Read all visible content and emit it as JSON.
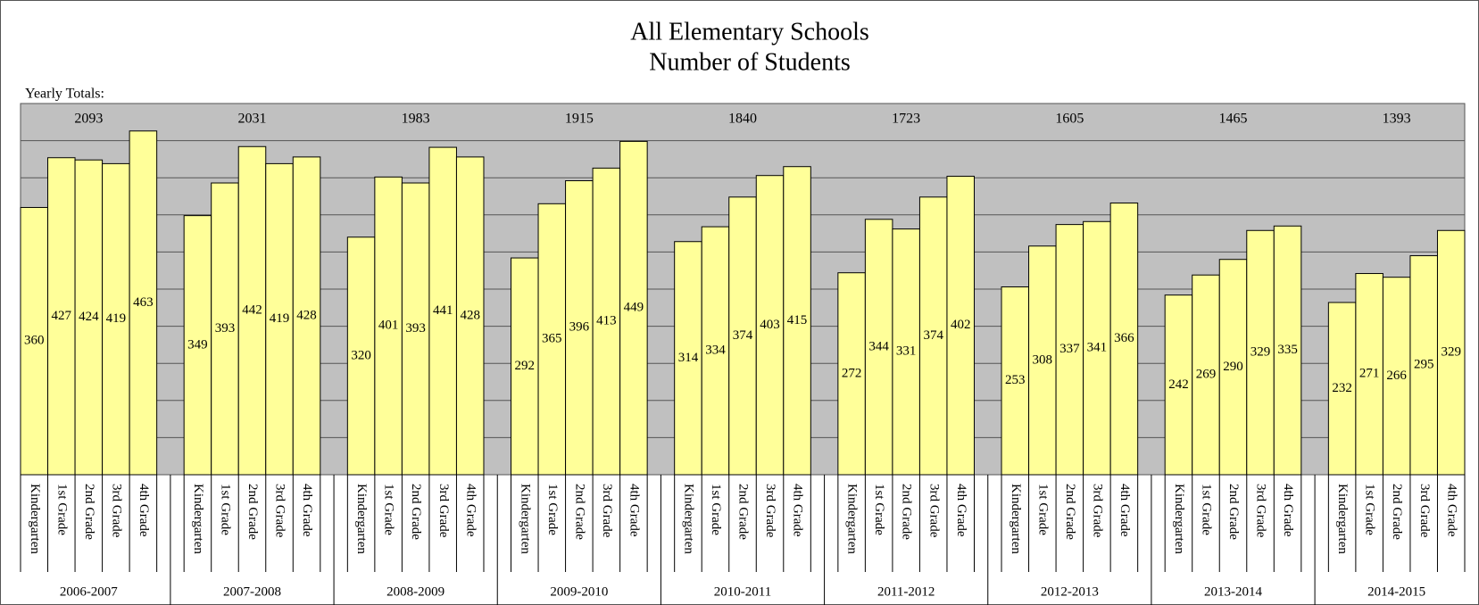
{
  "chart_data": {
    "type": "bar",
    "title": "All Elementary Schools",
    "subtitle": "Number of Students",
    "totals_label": "Yearly Totals:",
    "categories": [
      "2006-2007",
      "2007-2008",
      "2008-2009",
      "2009-2010",
      "2010-2011",
      "2011-2012",
      "2012-2013",
      "2013-2014",
      "2014-2015"
    ],
    "totals": [
      2093,
      2031,
      1983,
      1915,
      1840,
      1723,
      1605,
      1465,
      1393
    ],
    "series": [
      {
        "name": "Kindergarten",
        "color": "#ffff99",
        "values": [
          360,
          349,
          320,
          292,
          314,
          272,
          253,
          242,
          232
        ]
      },
      {
        "name": "1st Grade",
        "color": "#ffff99",
        "values": [
          427,
          393,
          401,
          365,
          334,
          344,
          308,
          269,
          271
        ]
      },
      {
        "name": "2nd Grade",
        "color": "#ffff99",
        "values": [
          424,
          442,
          393,
          396,
          374,
          331,
          337,
          290,
          266
        ]
      },
      {
        "name": "3rd Grade",
        "color": "#ffff99",
        "values": [
          419,
          419,
          441,
          413,
          403,
          374,
          341,
          329,
          295
        ]
      },
      {
        "name": "4th Grade",
        "color": "#ffff99",
        "values": [
          463,
          428,
          428,
          449,
          415,
          402,
          366,
          335,
          329
        ]
      }
    ],
    "ylim": [
      0,
      500
    ],
    "yticks": [
      0,
      50,
      100,
      150,
      200,
      250,
      300,
      350,
      400,
      450,
      500
    ],
    "grid": true
  }
}
